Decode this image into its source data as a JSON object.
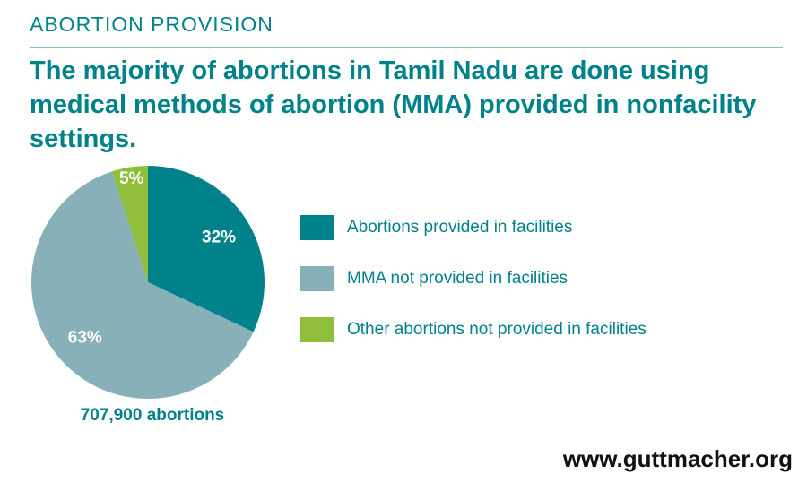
{
  "header": {
    "section": "ABORTION PROVISION",
    "headline": "The majority of abortions in Tamil Nadu are done using medical methods of abortion (MMA) provided in nonfacility settings."
  },
  "chart_data": {
    "type": "pie",
    "title": "The majority of abortions in Tamil Nadu are done using medical methods of abortion (MMA) provided in nonfacility settings.",
    "total_label": "707,900 abortions",
    "slices": [
      {
        "label": "Abortions provided in facilities",
        "value": 32,
        "value_label": "32%",
        "color": "#00828a"
      },
      {
        "label": "MMA not provided in facilities",
        "value": 63,
        "value_label": "63%",
        "color": "#87b0b8"
      },
      {
        "label": "Other abortions not provided in facilities",
        "value": 5,
        "value_label": "5%",
        "color": "#8ebe3b"
      }
    ],
    "legend_position": "right",
    "start": "12 o'clock",
    "direction": "clockwise"
  },
  "footer": {
    "source": "www.guttmacher.org"
  }
}
